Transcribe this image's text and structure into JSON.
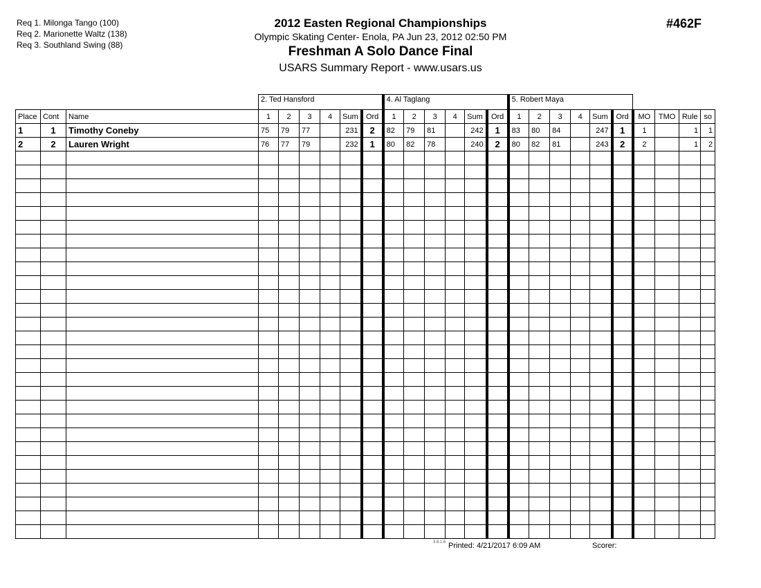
{
  "requirements": [
    "Req  1.  Milonga Tango (100)",
    "Req  2.  Marionette Waltz (138)",
    "Req  3.  Southland Swing (88)"
  ],
  "header": {
    "title": "2012 Easten Regional Championships",
    "venue": "Olympic Skating Center- Enola, PA  Jun 23, 2012  02:50 PM",
    "event": "Freshman A Solo Dance  Final",
    "report": "USARS Summary Report - www.usars.us",
    "event_number": "#462F"
  },
  "judges": [
    "2.  Ted Hansford",
    "4.  Al Taglang",
    "5.  Robert Maya"
  ],
  "columns": {
    "place": "Place",
    "cont": "Cont",
    "name": "Name",
    "scores": [
      "1",
      "2",
      "3",
      "4"
    ],
    "sum": "Sum",
    "ord": "Ord",
    "mo": "MO",
    "tmo": "TMO",
    "rule": "Rule",
    "so": "so"
  },
  "rows": [
    {
      "place": "1",
      "cont": "1",
      "name": "Timothy Coneby",
      "judges": [
        {
          "s": [
            "75",
            "79",
            "77",
            ""
          ],
          "sum": "231",
          "ord": "2"
        },
        {
          "s": [
            "82",
            "79",
            "81",
            ""
          ],
          "sum": "242",
          "ord": "1"
        },
        {
          "s": [
            "83",
            "80",
            "84",
            ""
          ],
          "sum": "247",
          "ord": "1"
        }
      ],
      "mo": "1",
      "tmo": "",
      "rule": "1",
      "so": "1"
    },
    {
      "place": "2",
      "cont": "2",
      "name": "Lauren Wright",
      "judges": [
        {
          "s": [
            "76",
            "77",
            "79",
            ""
          ],
          "sum": "232",
          "ord": "1"
        },
        {
          "s": [
            "80",
            "82",
            "78",
            ""
          ],
          "sum": "240",
          "ord": "2"
        },
        {
          "s": [
            "80",
            "82",
            "81",
            ""
          ],
          "sum": "243",
          "ord": "2"
        }
      ],
      "mo": "2",
      "tmo": "",
      "rule": "1",
      "so": "2"
    }
  ],
  "footer": {
    "version": "3.8.1.6",
    "printed": "Printed:  4/21/2017  6:09 AM",
    "scorer": "Scorer:"
  }
}
